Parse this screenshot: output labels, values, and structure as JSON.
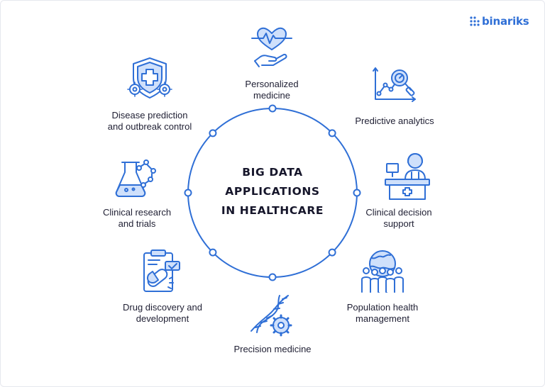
{
  "brand": {
    "logo_text": "binariks",
    "logo_icon": "dot-grid-logo-icon"
  },
  "center": {
    "lines": [
      "BIG DATA",
      "APPLICATIONS",
      "IN HEALTHCARE"
    ]
  },
  "colors": {
    "accent": "#2f6fd6",
    "icon_light": "#cfe0fb",
    "text": "#1f1f33"
  },
  "nodes": [
    {
      "lines": [
        "Personalized",
        "medicine"
      ],
      "icon": "heart-hand-icon"
    },
    {
      "lines": [
        "Predictive analytics"
      ],
      "icon": "analytics-magnifier-icon"
    },
    {
      "lines": [
        "Clinical decision",
        "support"
      ],
      "icon": "doctor-desk-icon"
    },
    {
      "lines": [
        "Population health",
        "management"
      ],
      "icon": "globe-people-icon"
    },
    {
      "lines": [
        "Precision medicine"
      ],
      "icon": "dna-gear-icon"
    },
    {
      "lines": [
        "Drug discovery and",
        "development"
      ],
      "icon": "clipboard-pill-icon"
    },
    {
      "lines": [
        "Clinical research",
        "and trials"
      ],
      "icon": "flask-molecule-icon"
    },
    {
      "lines": [
        "Disease prediction",
        "and outbreak control"
      ],
      "icon": "shield-virus-icon"
    }
  ]
}
